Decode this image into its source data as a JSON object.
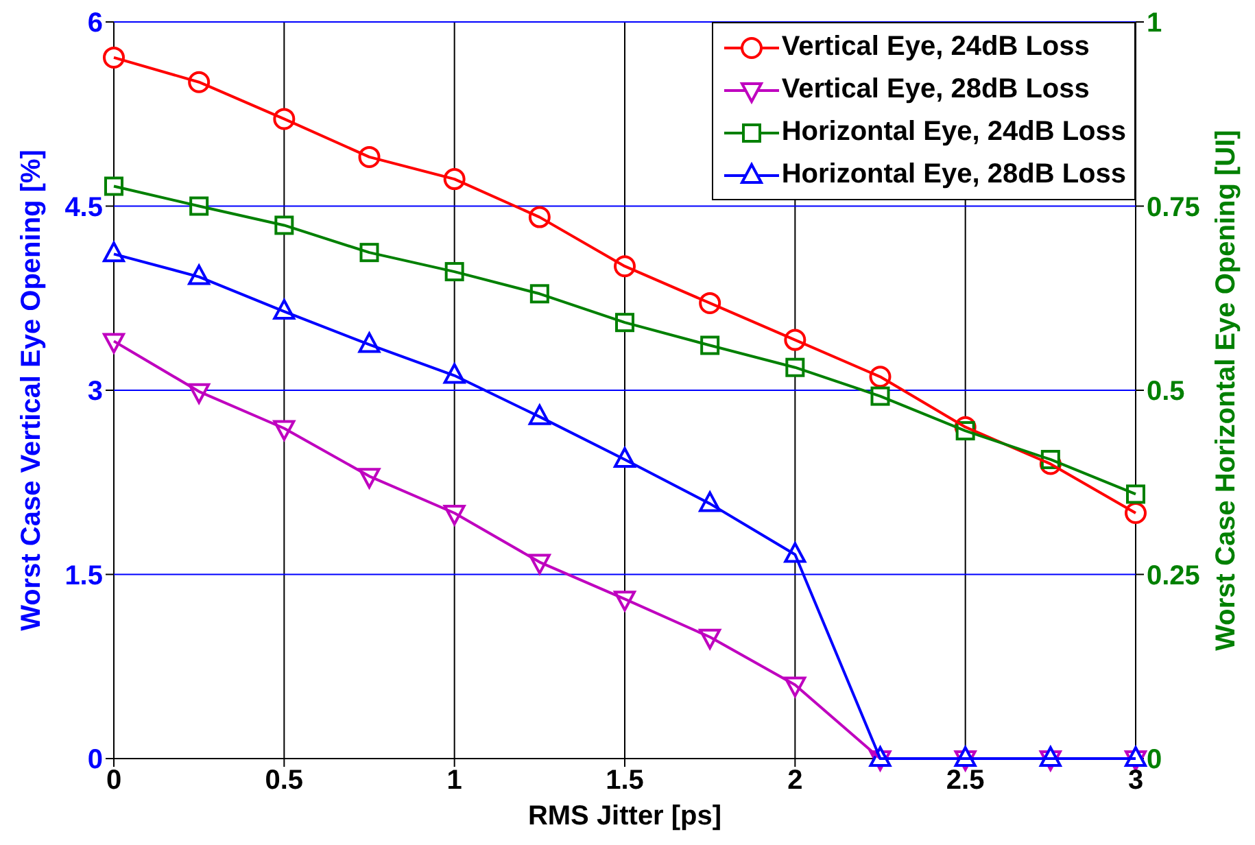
{
  "chart_data": {
    "type": "line",
    "xlabel": "RMS Jitter [ps]",
    "ylabel": "Worst Case Vertical Eye Opening [%]",
    "y2label": "Worst Case Horizontal Eye Opening [UI]",
    "x": [
      0,
      0.25,
      0.5,
      0.75,
      1,
      1.25,
      1.5,
      1.75,
      2,
      2.25,
      2.5,
      2.75,
      3
    ],
    "series": [
      {
        "name": "Vertical Eye, 24dB Loss",
        "color": "#ff0000",
        "marker": "circle",
        "values": [
          5.71,
          5.51,
          5.21,
          4.9,
          4.72,
          4.41,
          4.01,
          3.71,
          3.41,
          3.11,
          2.7,
          2.4,
          2.0
        ]
      },
      {
        "name": "Vertical Eye, 28dB Loss",
        "color": "#bf00bf",
        "marker": "triangle-down",
        "values": [
          3.4,
          2.99,
          2.69,
          2.3,
          2.0,
          1.6,
          1.3,
          0.99,
          0.6,
          0,
          0,
          0,
          0
        ]
      },
      {
        "name": "Horizontal Eye, 24dB Loss",
        "color": "#008000",
        "marker": "square",
        "axis": "y2",
        "values": [
          0.777,
          0.75,
          0.724,
          0.687,
          0.661,
          0.631,
          0.592,
          0.561,
          0.531,
          0.492,
          0.445,
          0.406,
          0.359
        ]
      },
      {
        "name": "Horizontal Eye, 28dB Loss",
        "color": "#0000ff",
        "marker": "triangle",
        "axis": "y2",
        "values": [
          0.685,
          0.654,
          0.607,
          0.562,
          0.52,
          0.464,
          0.406,
          0.346,
          0.277,
          0,
          0,
          0,
          0
        ]
      }
    ],
    "xlim": [
      0,
      3
    ],
    "xticks": [
      0,
      0.5,
      1,
      1.5,
      2,
      2.5,
      3
    ],
    "ylim": [
      0,
      6
    ],
    "yticks": [
      0,
      1.5,
      3,
      4.5,
      6
    ],
    "y2lim": [
      0,
      1
    ],
    "y2ticks": [
      0,
      0.25,
      0.5,
      0.75,
      1
    ],
    "grid": true,
    "legend": "top right",
    "line_style": "solid"
  }
}
